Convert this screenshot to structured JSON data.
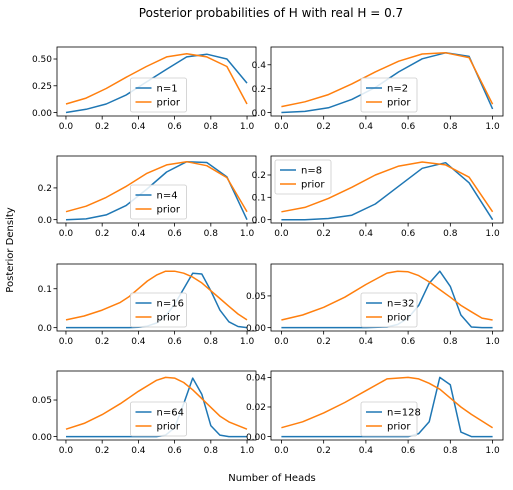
{
  "figure": {
    "title": "Posterior probabilities of H with real H = 0.7",
    "xlabel": "Number of Heads",
    "ylabel": "Posterior Density"
  },
  "colors": {
    "posterior": "#1f77b4",
    "prior": "#ff7f0e",
    "axes": "#000000",
    "background": "#ffffff",
    "legend_border": "#cccccc"
  },
  "chart_data": [
    {
      "type": "line",
      "x": [
        0.0,
        0.1111,
        0.2222,
        0.3333,
        0.4444,
        0.5556,
        0.6667,
        0.7778,
        0.8889,
        1.0
      ],
      "series": [
        {
          "name": "n=1",
          "values": [
            0.0,
            0.03,
            0.08,
            0.165,
            0.285,
            0.405,
            0.52,
            0.545,
            0.5,
            0.275
          ]
        },
        {
          "name": "prior",
          "values": [
            0.08,
            0.135,
            0.225,
            0.33,
            0.43,
            0.52,
            0.55,
            0.52,
            0.43,
            0.08
          ]
        }
      ],
      "xlim": [
        0.0,
        1.0
      ],
      "ylim": [
        0.0,
        0.58
      ],
      "xticks": [
        0.0,
        0.2,
        0.4,
        0.6,
        0.8,
        1.0
      ],
      "xtick_labels": [
        "0.0",
        "0.2",
        "0.4",
        "0.6",
        "0.8",
        "1.0"
      ],
      "yticks": [
        0.0,
        0.25,
        0.5
      ],
      "ytick_labels": [
        "0.00",
        "0.25",
        "0.50"
      ],
      "legend_position": "center-bottom"
    },
    {
      "type": "line",
      "x": [
        0.0,
        0.1111,
        0.2222,
        0.3333,
        0.4444,
        0.5556,
        0.6667,
        0.7778,
        0.8889,
        1.0
      ],
      "series": [
        {
          "name": "n=2",
          "values": [
            0.0,
            0.01,
            0.04,
            0.11,
            0.21,
            0.34,
            0.45,
            0.5,
            0.47,
            0.03
          ]
        },
        {
          "name": "prior",
          "values": [
            0.05,
            0.09,
            0.15,
            0.24,
            0.34,
            0.43,
            0.49,
            0.5,
            0.46,
            0.07
          ]
        }
      ],
      "xlim": [
        0.0,
        1.0
      ],
      "ylim": [
        0.0,
        0.52
      ],
      "xticks": [
        0.0,
        0.2,
        0.4,
        0.6,
        0.8,
        1.0
      ],
      "xtick_labels": [
        "0.0",
        "0.2",
        "0.4",
        "0.6",
        "0.8",
        "1.0"
      ],
      "yticks": [
        0.0,
        0.2,
        0.4
      ],
      "ytick_labels": [
        "0.0",
        "0.2",
        "0.4"
      ],
      "legend_position": "center-bottom"
    },
    {
      "type": "line",
      "x": [
        0.0,
        0.1111,
        0.2222,
        0.3333,
        0.4444,
        0.5556,
        0.6667,
        0.7778,
        0.8889,
        1.0
      ],
      "series": [
        {
          "name": "n=4",
          "values": [
            0.0,
            0.005,
            0.03,
            0.09,
            0.19,
            0.3,
            0.365,
            0.36,
            0.27,
            0.0
          ]
        },
        {
          "name": "prior",
          "values": [
            0.05,
            0.085,
            0.14,
            0.21,
            0.29,
            0.345,
            0.365,
            0.34,
            0.265,
            0.05
          ]
        }
      ],
      "xlim": [
        0.0,
        1.0
      ],
      "ylim": [
        0.0,
        0.38
      ],
      "xticks": [
        0.0,
        0.2,
        0.4,
        0.6,
        0.8,
        1.0
      ],
      "xtick_labels": [
        "0.0",
        "0.2",
        "0.4",
        "0.6",
        "0.8",
        "1.0"
      ],
      "yticks": [
        0.0,
        0.2
      ],
      "ytick_labels": [
        "0.0",
        "0.2"
      ],
      "legend_position": "center-bottom"
    },
    {
      "type": "line",
      "x": [
        0.0,
        0.1111,
        0.2222,
        0.3333,
        0.4444,
        0.5556,
        0.6667,
        0.7778,
        0.8889,
        1.0
      ],
      "series": [
        {
          "name": "n=8",
          "values": [
            0.0,
            0.0,
            0.005,
            0.02,
            0.07,
            0.15,
            0.23,
            0.255,
            0.165,
            0.0
          ]
        },
        {
          "name": "prior",
          "values": [
            0.035,
            0.055,
            0.095,
            0.145,
            0.2,
            0.24,
            0.258,
            0.245,
            0.19,
            0.035
          ]
        }
      ],
      "xlim": [
        0.0,
        1.0
      ],
      "ylim": [
        0.0,
        0.27
      ],
      "xticks": [
        0.0,
        0.2,
        0.4,
        0.6,
        0.8,
        1.0
      ],
      "xtick_labels": [
        "0.0",
        "0.2",
        "0.4",
        "0.6",
        "0.8",
        "1.0"
      ],
      "yticks": [
        0.0,
        0.1,
        0.2
      ],
      "ytick_labels": [
        "0.0",
        "0.1",
        "0.2"
      ],
      "legend_position": "top-left"
    },
    {
      "type": "line",
      "x": [
        0.0,
        0.1,
        0.2,
        0.3,
        0.35,
        0.4,
        0.45,
        0.5,
        0.55,
        0.6,
        0.65,
        0.7,
        0.75,
        0.8,
        0.85,
        0.9,
        0.95,
        1.0
      ],
      "series": [
        {
          "name": "n=16",
          "values": [
            0.0,
            0.0,
            0.0,
            0.0,
            0.0,
            0.001,
            0.004,
            0.012,
            0.03,
            0.06,
            0.1,
            0.14,
            0.138,
            0.095,
            0.045,
            0.015,
            0.003,
            0.0
          ]
        },
        {
          "name": "prior",
          "values": [
            0.02,
            0.03,
            0.045,
            0.065,
            0.08,
            0.1,
            0.12,
            0.135,
            0.145,
            0.145,
            0.14,
            0.13,
            0.115,
            0.095,
            0.075,
            0.055,
            0.035,
            0.02
          ]
        }
      ],
      "xlim": [
        0.0,
        1.0
      ],
      "ylim": [
        0.0,
        0.155
      ],
      "xticks": [
        0.0,
        0.2,
        0.4,
        0.6,
        0.8,
        1.0
      ],
      "xtick_labels": [
        "0.0",
        "0.2",
        "0.4",
        "0.6",
        "0.8",
        "1.0"
      ],
      "yticks": [
        0.0,
        0.1
      ],
      "ytick_labels": [
        "0.0",
        "0.1"
      ],
      "legend_position": "center-bottom"
    },
    {
      "type": "line",
      "x": [
        0.0,
        0.1,
        0.2,
        0.3,
        0.4,
        0.5,
        0.55,
        0.6,
        0.65,
        0.7,
        0.75,
        0.8,
        0.85,
        0.9,
        0.95,
        1.0
      ],
      "series": [
        {
          "name": "n=32",
          "values": [
            0.0,
            0.0,
            0.0,
            0.0,
            0.0,
            0.001,
            0.005,
            0.015,
            0.035,
            0.07,
            0.089,
            0.065,
            0.02,
            0.001,
            0.0,
            0.0
          ]
        },
        {
          "name": "prior",
          "values": [
            0.012,
            0.02,
            0.032,
            0.048,
            0.068,
            0.086,
            0.089,
            0.088,
            0.082,
            0.072,
            0.06,
            0.048,
            0.035,
            0.025,
            0.015,
            0.012
          ]
        }
      ],
      "xlim": [
        0.0,
        1.0
      ],
      "ylim": [
        0.0,
        0.095
      ],
      "xticks": [
        0.0,
        0.2,
        0.4,
        0.6,
        0.8,
        1.0
      ],
      "xtick_labels": [
        "0.0",
        "0.2",
        "0.4",
        "0.6",
        "0.8",
        "1.0"
      ],
      "yticks": [
        0.0,
        0.05
      ],
      "ytick_labels": [
        "0.00",
        "0.05"
      ],
      "legend_position": "center-bottom"
    },
    {
      "type": "line",
      "x": [
        0.0,
        0.1,
        0.2,
        0.3,
        0.4,
        0.5,
        0.55,
        0.6,
        0.65,
        0.7,
        0.75,
        0.8,
        0.85,
        0.9,
        1.0
      ],
      "series": [
        {
          "name": "n=64",
          "values": [
            0.0,
            0.0,
            0.0,
            0.0,
            0.0,
            0.0,
            0.002,
            0.012,
            0.045,
            0.08,
            0.058,
            0.015,
            0.002,
            0.0,
            0.0
          ]
        },
        {
          "name": "prior",
          "values": [
            0.01,
            0.018,
            0.03,
            0.045,
            0.062,
            0.077,
            0.081,
            0.08,
            0.074,
            0.064,
            0.052,
            0.04,
            0.028,
            0.02,
            0.01
          ]
        }
      ],
      "xlim": [
        0.0,
        1.0
      ],
      "ylim": [
        0.0,
        0.085
      ],
      "xticks": [
        0.0,
        0.2,
        0.4,
        0.6,
        0.8,
        1.0
      ],
      "xtick_labels": [
        "0.0",
        "0.2",
        "0.4",
        "0.6",
        "0.8",
        "1.0"
      ],
      "yticks": [
        0.0,
        0.05
      ],
      "ytick_labels": [
        "0.00",
        "0.05"
      ],
      "legend_position": "center-bottom"
    },
    {
      "type": "line",
      "x": [
        0.0,
        0.1,
        0.2,
        0.3,
        0.4,
        0.5,
        0.6,
        0.65,
        0.7,
        0.75,
        0.8,
        0.85,
        0.9,
        1.0
      ],
      "series": [
        {
          "name": "n=128",
          "values": [
            0.0,
            0.0,
            0.0,
            0.0,
            0.0,
            0.0,
            0.0,
            0.002,
            0.01,
            0.04,
            0.035,
            0.003,
            0.0,
            0.0
          ]
        },
        {
          "name": "prior",
          "values": [
            0.006,
            0.01,
            0.016,
            0.023,
            0.031,
            0.039,
            0.04,
            0.039,
            0.036,
            0.032,
            0.026,
            0.02,
            0.015,
            0.006
          ]
        }
      ],
      "xlim": [
        0.0,
        1.0
      ],
      "ylim": [
        0.0,
        0.042
      ],
      "xticks": [
        0.0,
        0.2,
        0.4,
        0.6,
        0.8,
        1.0
      ],
      "xtick_labels": [
        "0.0",
        "0.2",
        "0.4",
        "0.6",
        "0.8",
        "1.0"
      ],
      "yticks": [
        0.0,
        0.02,
        0.04
      ],
      "ytick_labels": [
        "0.00",
        "0.02",
        "0.04"
      ],
      "legend_position": "center-bottom"
    }
  ]
}
